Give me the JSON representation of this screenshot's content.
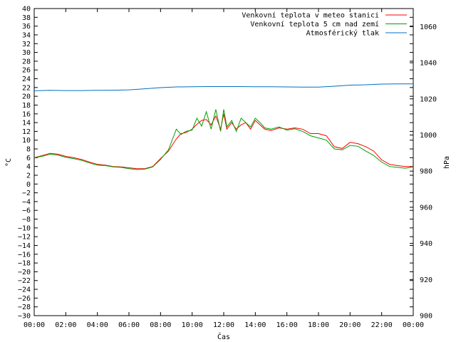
{
  "chart_data": {
    "type": "line",
    "title": "",
    "xlabel": "Čas",
    "ylabel": "°C",
    "y2label": "hPa",
    "xlim": [
      0,
      24
    ],
    "ylim": [
      -30,
      40
    ],
    "y2lim": [
      900,
      1070
    ],
    "grid": false,
    "legend_position": "top-right",
    "x_ticks": [
      {
        "value": 0,
        "label": "00:00"
      },
      {
        "value": 2,
        "label": "02:00"
      },
      {
        "value": 4,
        "label": "04:00"
      },
      {
        "value": 6,
        "label": "06:00"
      },
      {
        "value": 8,
        "label": "08:00"
      },
      {
        "value": 10,
        "label": "10:00"
      },
      {
        "value": 12,
        "label": "12:00"
      },
      {
        "value": 14,
        "label": "14:00"
      },
      {
        "value": 16,
        "label": "16:00"
      },
      {
        "value": 18,
        "label": "18:00"
      },
      {
        "value": 20,
        "label": "20:00"
      },
      {
        "value": 22,
        "label": "22:00"
      },
      {
        "value": 24,
        "label": "00:00"
      }
    ],
    "y_ticks": [
      40,
      38,
      36,
      34,
      32,
      30,
      28,
      26,
      24,
      22,
      20,
      18,
      16,
      14,
      12,
      10,
      8,
      6,
      4,
      2,
      0,
      -2,
      -4,
      -6,
      -8,
      -10,
      -12,
      -14,
      -16,
      -18,
      -20,
      -22,
      -24,
      -26,
      -28,
      -30
    ],
    "y2_ticks": [
      900,
      920,
      940,
      960,
      980,
      1000,
      1020,
      1040,
      1060
    ],
    "series": [
      {
        "name": "Venkovní teplota v meteo stanici",
        "color": "#ff0000",
        "axis": "left",
        "x": [
          0,
          0.5,
          1,
          1.5,
          2,
          2.5,
          3,
          3.5,
          4,
          4.5,
          5,
          5.5,
          6,
          6.5,
          7,
          7.5,
          8,
          8.5,
          9,
          9.3,
          9.6,
          10,
          10.3,
          10.6,
          10.9,
          11.2,
          11.5,
          11.8,
          12,
          12.2,
          12.5,
          12.8,
          13.1,
          13.4,
          13.7,
          14,
          14.3,
          14.6,
          15,
          15.5,
          16,
          16.5,
          17,
          17.5,
          18,
          18.5,
          19,
          19.5,
          20,
          20.5,
          21,
          21.5,
          22,
          22.5,
          23,
          23.5,
          24
        ],
        "y": [
          6,
          6.5,
          7,
          6.8,
          6.3,
          6,
          5.6,
          5,
          4.5,
          4.3,
          4,
          3.9,
          3.7,
          3.5,
          3.5,
          4,
          5.8,
          7.5,
          10.3,
          11.5,
          11.7,
          12.5,
          13.6,
          14.5,
          14.7,
          13.5,
          15.5,
          12.5,
          16,
          12.5,
          14,
          12.5,
          13.5,
          14,
          12.5,
          14.5,
          13.5,
          12.5,
          12.2,
          12.8,
          12.5,
          12.8,
          12.5,
          11.5,
          11.5,
          11,
          8.5,
          8.1,
          9.5,
          9.2,
          8.5,
          7.5,
          5.5,
          4.5,
          4.2,
          4,
          4
        ]
      },
      {
        "name": "Venkovní teplota 5 cm nad zemí",
        "color": "#00a000",
        "axis": "left",
        "x": [
          0,
          0.5,
          1,
          1.5,
          2,
          2.5,
          3,
          3.5,
          4,
          4.5,
          5,
          5.5,
          6,
          6.5,
          7,
          7.5,
          8,
          8.5,
          9,
          9.3,
          9.6,
          10,
          10.3,
          10.6,
          10.9,
          11.2,
          11.5,
          11.8,
          12,
          12.2,
          12.5,
          12.8,
          13.1,
          13.4,
          13.7,
          14,
          14.3,
          14.6,
          15,
          15.5,
          16,
          16.5,
          17,
          17.5,
          18,
          18.5,
          19,
          19.5,
          20,
          20.5,
          21,
          21.5,
          22,
          22.5,
          23,
          23.5,
          24
        ],
        "y": [
          6,
          6.3,
          6.8,
          6.6,
          6.1,
          5.8,
          5.4,
          4.8,
          4.3,
          4.2,
          3.9,
          3.8,
          3.5,
          3.3,
          3.4,
          3.9,
          5.6,
          7.8,
          12.5,
          11.3,
          12,
          12.3,
          15,
          13.2,
          16.5,
          12.5,
          17,
          12,
          17,
          13,
          14.5,
          12,
          15,
          14,
          13,
          15,
          14,
          12.8,
          12.5,
          13,
          12.3,
          12.6,
          12,
          11,
          10.5,
          10,
          8,
          7.8,
          8.8,
          8.6,
          7.5,
          6.5,
          5,
          4,
          3.8,
          3.6,
          3.9
        ]
      },
      {
        "name": "Atmosférický tlak",
        "color": "#0070c0",
        "axis": "right",
        "x": [
          0,
          1,
          2,
          3,
          4,
          5,
          6,
          7,
          8,
          9,
          10,
          11,
          12,
          13,
          14,
          15,
          16,
          17,
          18,
          19,
          20,
          21,
          22,
          23,
          24
        ],
        "y": [
          1024.5,
          1024.7,
          1024.6,
          1024.6,
          1024.7,
          1024.8,
          1025,
          1025.6,
          1026.2,
          1026.6,
          1026.7,
          1026.8,
          1026.8,
          1026.8,
          1026.7,
          1026.7,
          1026.6,
          1026.5,
          1026.5,
          1027,
          1027.6,
          1027.8,
          1028.2,
          1028.3,
          1028.3
        ]
      }
    ]
  }
}
